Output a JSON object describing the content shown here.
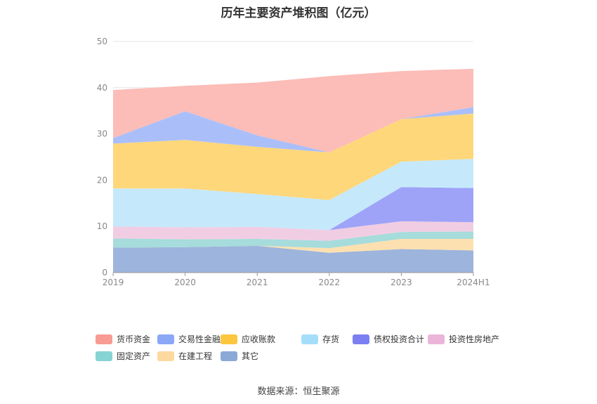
{
  "title": "历年主要资产堆积图（亿元）",
  "source": "数据来源：恒生聚源",
  "chart_data": {
    "type": "area",
    "stacked": true,
    "categories": [
      "2019",
      "2020",
      "2021",
      "2022",
      "2023",
      "2024H1"
    ],
    "ylim": [
      0,
      50
    ],
    "yticks": [
      0,
      10,
      20,
      30,
      40,
      50
    ],
    "grid": true,
    "legend_position": "bottom",
    "series": [
      {
        "name": "其它",
        "color": "#9db4dc",
        "values": [
          5.4,
          5.5,
          5.8,
          4.3,
          5.1,
          4.8
        ]
      },
      {
        "name": "在建工程",
        "color": "#fde0b0",
        "values": [
          0.0,
          0.0,
          0.0,
          1.0,
          2.2,
          2.5
        ]
      },
      {
        "name": "固定资产",
        "color": "#a6dcdb",
        "values": [
          2.0,
          1.7,
          1.5,
          1.6,
          1.5,
          1.6
        ]
      },
      {
        "name": "投资性房地产",
        "color": "#f1cde3",
        "values": [
          2.6,
          2.6,
          2.6,
          2.3,
          2.3,
          2.0
        ]
      },
      {
        "name": "债权投资合计",
        "color": "#9ea3f8",
        "values": [
          0.0,
          0.0,
          0.0,
          0.0,
          7.4,
          7.4
        ]
      },
      {
        "name": "存货",
        "color": "#c5e9fb",
        "values": [
          8.2,
          8.4,
          7.1,
          6.5,
          5.5,
          6.3
        ]
      },
      {
        "name": "应收账款",
        "color": "#ffd77b",
        "values": [
          9.7,
          10.5,
          10.2,
          10.3,
          9.2,
          9.8
        ]
      },
      {
        "name": "交易性金融资产",
        "color": "#aabffa",
        "values": [
          1.2,
          6.2,
          2.5,
          0.0,
          0.0,
          1.4
        ]
      },
      {
        "name": "货币资金",
        "color": "#fcbcb7",
        "values": [
          10.4,
          5.5,
          11.4,
          16.5,
          10.4,
          8.3
        ]
      }
    ],
    "legend_order": [
      "货币资金",
      "交易性金融资产",
      "应收账款",
      "存货",
      "债权投资合计",
      "投资性房地产",
      "固定资产",
      "在建工程",
      "其它"
    ],
    "legend_colors": {
      "货币资金": "#f89b93",
      "交易性金融资产": "#8ba8f7",
      "应收账款": "#fcc63f",
      "存货": "#a5defa",
      "债权投资合计": "#7b7ff2",
      "投资性房地产": "#eab5d9",
      "固定资产": "#86d4d3",
      "在建工程": "#fdd9a0",
      "其它": "#8ba9d6"
    }
  }
}
